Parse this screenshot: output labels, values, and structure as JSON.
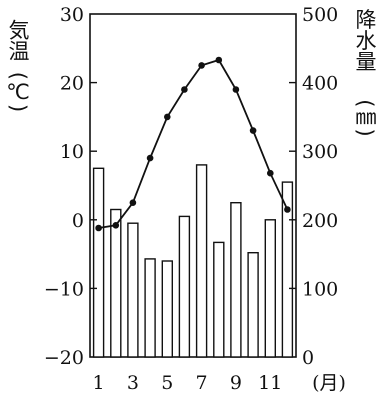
{
  "chart_data": {
    "type": "bar+line",
    "categories": [
      "1",
      "2",
      "3",
      "4",
      "5",
      "6",
      "7",
      "8",
      "9",
      "10",
      "11",
      "12"
    ],
    "x_tick_labels": [
      "1",
      "3",
      "5",
      "7",
      "9",
      "11"
    ],
    "x_unit": "(月)",
    "series": [
      {
        "kind": "line",
        "axis": "left",
        "values": [
          -1.2,
          -0.8,
          2.5,
          9.0,
          15.0,
          19.0,
          22.5,
          23.3,
          19.0,
          13.0,
          6.8,
          1.5
        ]
      },
      {
        "kind": "bar",
        "axis": "right",
        "values": [
          275,
          215,
          195,
          143,
          140,
          205,
          280,
          167,
          225,
          152,
          200,
          255
        ]
      }
    ],
    "left_axis": {
      "title": "気温",
      "unit": "(℃)",
      "range": [
        -20,
        30
      ],
      "ticks": [
        "30",
        "20",
        "10",
        "0",
        "−10",
        "−20"
      ]
    },
    "right_axis": {
      "title": "降水量",
      "unit": "(㎜)",
      "range": [
        0,
        500
      ],
      "ticks": [
        "500",
        "400",
        "300",
        "200",
        "100",
        "0"
      ]
    },
    "colors": {
      "ink": "#111111",
      "bar_fill": "#ffffff"
    },
    "grid": false,
    "legend": "none"
  }
}
